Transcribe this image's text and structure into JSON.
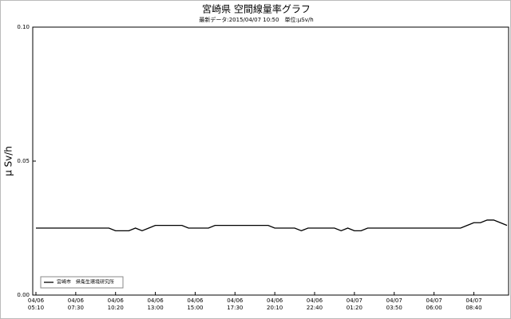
{
  "chart_data": {
    "type": "line",
    "title": "宮崎県 空間線量率グラフ",
    "subtitle": "最新データ:2015/04/07 10:50　単位:μSv/h",
    "y_label": "μ Sv/h",
    "categories": [
      "04/06\n05:10",
      null,
      null,
      null,
      null,
      null,
      "04/06\n07:30",
      null,
      null,
      null,
      null,
      null,
      "04/06\n10:20",
      null,
      null,
      null,
      null,
      null,
      "04/06\n13:00",
      null,
      null,
      null,
      null,
      null,
      "04/06\n15:00",
      null,
      null,
      null,
      null,
      null,
      "04/06\n17:30",
      null,
      null,
      null,
      null,
      null,
      "04/06\n20:10",
      null,
      null,
      null,
      null,
      null,
      "04/06\n22:40",
      null,
      null,
      null,
      null,
      null,
      "04/07\n01:20",
      null,
      null,
      null,
      null,
      null,
      "04/07\n03:50",
      null,
      null,
      null,
      null,
      null,
      "04/07\n06:00",
      null,
      null,
      null,
      null,
      null,
      "04/07\n08:40",
      null,
      null,
      null,
      null,
      null
    ],
    "series": [
      {
        "name": "宮崎市　県衛生環境研究所",
        "color": "#000000",
        "values": [
          0.025,
          0.025,
          0.025,
          0.025,
          0.025,
          0.025,
          0.025,
          0.025,
          0.025,
          0.025,
          0.025,
          0.025,
          0.024,
          0.024,
          0.024,
          0.025,
          0.024,
          0.025,
          0.026,
          0.026,
          0.026,
          0.026,
          0.026,
          0.025,
          0.025,
          0.025,
          0.025,
          0.026,
          0.026,
          0.026,
          0.026,
          0.026,
          0.026,
          0.026,
          0.026,
          0.026,
          0.025,
          0.025,
          0.025,
          0.025,
          0.024,
          0.025,
          0.025,
          0.025,
          0.025,
          0.025,
          0.024,
          0.025,
          0.024,
          0.024,
          0.025,
          0.025,
          0.025,
          0.025,
          0.025,
          0.025,
          0.025,
          0.025,
          0.025,
          0.025,
          0.025,
          0.025,
          0.025,
          0.025,
          0.025,
          0.026,
          0.027,
          0.027,
          0.028,
          0.028,
          0.027,
          0.026
        ]
      }
    ],
    "ylim": [
      0,
      0.1
    ],
    "yticks": [
      {
        "value": 0,
        "label": "0.00"
      },
      {
        "value": 0.05,
        "label": "0.05"
      },
      {
        "value": 0.1,
        "label": "0.10"
      }
    ],
    "grid": false,
    "legend": "lower left"
  }
}
